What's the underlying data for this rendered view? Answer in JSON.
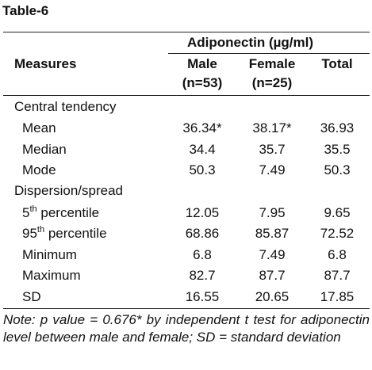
{
  "title": "Table-6",
  "header": {
    "group_label": "Adiponectin (µg/ml)",
    "measures_label": "Measures",
    "columns": [
      {
        "label": "Male",
        "n": "(n=53)"
      },
      {
        "label": "Female",
        "n": "(n=25)"
      },
      {
        "label": "Total",
        "n": ""
      }
    ]
  },
  "sections": [
    {
      "label": "Central tendency",
      "rows": [
        {
          "label": "Mean",
          "values": [
            "36.34*",
            "38.17*",
            "36.93"
          ]
        },
        {
          "label": "Median",
          "values": [
            "34.4",
            "35.7",
            "35.5"
          ]
        },
        {
          "label": "Mode",
          "values": [
            "50.3",
            "7.49",
            "50.3"
          ]
        }
      ]
    },
    {
      "label": "Dispersion/spread",
      "rows": [
        {
          "label_num": "5",
          "label_sup": "th",
          "label_rest": " percentile",
          "values": [
            "12.05",
            "7.95",
            "9.65"
          ]
        },
        {
          "label_num": "95",
          "label_sup": "th",
          "label_rest": " percentile",
          "values": [
            "68.86",
            "85.87",
            "72.52"
          ]
        },
        {
          "label": "Minimum",
          "values": [
            "6.8",
            "7.49",
            "6.8"
          ]
        },
        {
          "label": "Maximum",
          "values": [
            "82.7",
            "87.7",
            "87.7"
          ]
        },
        {
          "label": "SD",
          "values": [
            "16.55",
            "20.65",
            "17.85"
          ]
        }
      ]
    }
  ],
  "note": "Note: p value = 0.676* by independent t test for adiponectin level between male and female; SD = standard deviation"
}
